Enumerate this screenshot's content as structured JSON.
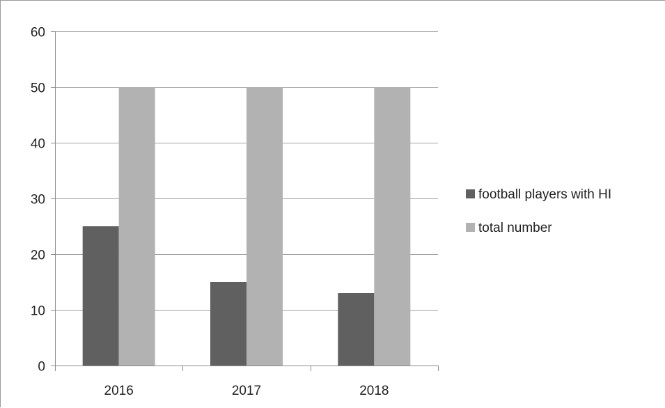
{
  "chart_data": {
    "type": "bar",
    "categories": [
      "2016",
      "2017",
      "2018"
    ],
    "series": [
      {
        "name": "football players with HI",
        "values": [
          25,
          15,
          13
        ],
        "color": "#606060"
      },
      {
        "name": "total number",
        "values": [
          50,
          50,
          50
        ],
        "color": "#b2b2b2"
      }
    ],
    "title": "",
    "xlabel": "",
    "ylabel": "",
    "ylim": [
      0,
      60
    ],
    "yticks": [
      0,
      10,
      20,
      30,
      40,
      50,
      60
    ],
    "grid": true,
    "legend_position": "right"
  }
}
